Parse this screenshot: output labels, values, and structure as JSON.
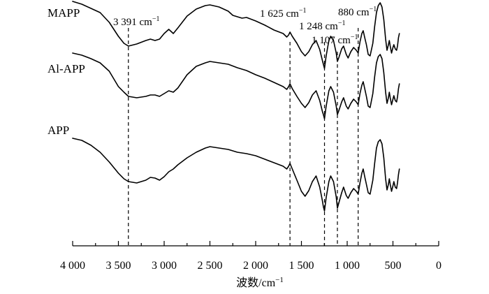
{
  "chart_data": {
    "type": "line",
    "xlabel": "波数/cm",
    "xlabel_sup": "−1",
    "xlim": [
      4000,
      0
    ],
    "x_reversed": true,
    "x_ticks": [
      {
        "value": 4000,
        "label": "4 000"
      },
      {
        "value": 3500,
        "label": "3 500"
      },
      {
        "value": 3000,
        "label": "3 000"
      },
      {
        "value": 2500,
        "label": "2 500"
      },
      {
        "value": 2000,
        "label": "2 000"
      },
      {
        "value": 1500,
        "label": "1 500"
      },
      {
        "value": 1000,
        "label": "1 000"
      },
      {
        "value": 500,
        "label": "500"
      },
      {
        "value": 0,
        "label": "0"
      }
    ],
    "annotations": [
      {
        "x": 3391,
        "text": "3 391 cm",
        "sup": "−1"
      },
      {
        "x": 1625,
        "text": "1 625 cm",
        "sup": "−1"
      },
      {
        "x": 1248,
        "text": "1 248 cm",
        "sup": "−1"
      },
      {
        "x": 1107,
        "text": "1 107 cm",
        "sup": "−1"
      },
      {
        "x": 880,
        "text": "880 cm",
        "sup": "−1"
      }
    ],
    "series": [
      {
        "name": "MAPP",
        "points": [
          [
            4000,
            14
          ],
          [
            3900,
            18
          ],
          [
            3800,
            24
          ],
          [
            3700,
            30
          ],
          [
            3600,
            44
          ],
          [
            3500,
            64
          ],
          [
            3440,
            74
          ],
          [
            3391,
            78
          ],
          [
            3300,
            75
          ],
          [
            3200,
            70
          ],
          [
            3150,
            68
          ],
          [
            3100,
            70
          ],
          [
            3050,
            68
          ],
          [
            3000,
            60
          ],
          [
            2950,
            54
          ],
          [
            2900,
            60
          ],
          [
            2850,
            52
          ],
          [
            2750,
            35
          ],
          [
            2650,
            25
          ],
          [
            2550,
            20
          ],
          [
            2500,
            19
          ],
          [
            2400,
            22
          ],
          [
            2300,
            28
          ],
          [
            2250,
            34
          ],
          [
            2150,
            38
          ],
          [
            2100,
            37
          ],
          [
            2000,
            42
          ],
          [
            1900,
            48
          ],
          [
            1800,
            55
          ],
          [
            1700,
            60
          ],
          [
            1660,
            65
          ],
          [
            1640,
            62
          ],
          [
            1625,
            58
          ],
          [
            1600,
            64
          ],
          [
            1550,
            74
          ],
          [
            1500,
            86
          ],
          [
            1460,
            92
          ],
          [
            1420,
            86
          ],
          [
            1380,
            76
          ],
          [
            1340,
            70
          ],
          [
            1300,
            83
          ],
          [
            1270,
            99
          ],
          [
            1260,
            104
          ],
          [
            1248,
            110
          ],
          [
            1230,
            92
          ],
          [
            1200,
            70
          ],
          [
            1180,
            64
          ],
          [
            1150,
            70
          ],
          [
            1120,
            88
          ],
          [
            1107,
            100
          ],
          [
            1090,
            94
          ],
          [
            1060,
            82
          ],
          [
            1040,
            78
          ],
          [
            1010,
            90
          ],
          [
            990,
            95
          ],
          [
            960,
            86
          ],
          [
            930,
            80
          ],
          [
            900,
            84
          ],
          [
            880,
            88
          ],
          [
            860,
            72
          ],
          [
            840,
            60
          ],
          [
            825,
            56
          ],
          [
            810,
            65
          ],
          [
            790,
            76
          ],
          [
            770,
            90
          ],
          [
            750,
            92
          ],
          [
            720,
            74
          ],
          [
            700,
            50
          ],
          [
            680,
            30
          ],
          [
            660,
            20
          ],
          [
            640,
            16
          ],
          [
            620,
            22
          ],
          [
            600,
            40
          ],
          [
            580,
            68
          ],
          [
            565,
            84
          ],
          [
            550,
            76
          ],
          [
            540,
            70
          ],
          [
            530,
            78
          ],
          [
            515,
            88
          ],
          [
            500,
            80
          ],
          [
            490,
            76
          ],
          [
            475,
            82
          ],
          [
            460,
            84
          ],
          [
            450,
            78
          ],
          [
            440,
            66
          ],
          [
            430,
            60
          ]
        ]
      },
      {
        "name": "Al-APP",
        "points": [
          [
            4000,
            14
          ],
          [
            3900,
            17
          ],
          [
            3800,
            22
          ],
          [
            3700,
            28
          ],
          [
            3600,
            40
          ],
          [
            3500,
            62
          ],
          [
            3440,
            70
          ],
          [
            3391,
            76
          ],
          [
            3300,
            78
          ],
          [
            3200,
            76
          ],
          [
            3150,
            74
          ],
          [
            3100,
            74
          ],
          [
            3050,
            76
          ],
          [
            3000,
            72
          ],
          [
            2950,
            68
          ],
          [
            2900,
            70
          ],
          [
            2850,
            64
          ],
          [
            2750,
            45
          ],
          [
            2650,
            33
          ],
          [
            2550,
            28
          ],
          [
            2500,
            26
          ],
          [
            2400,
            28
          ],
          [
            2300,
            30
          ],
          [
            2200,
            35
          ],
          [
            2100,
            39
          ],
          [
            2000,
            45
          ],
          [
            1900,
            50
          ],
          [
            1800,
            56
          ],
          [
            1700,
            62
          ],
          [
            1660,
            66
          ],
          [
            1640,
            62
          ],
          [
            1625,
            58
          ],
          [
            1600,
            65
          ],
          [
            1550,
            76
          ],
          [
            1500,
            86
          ],
          [
            1460,
            92
          ],
          [
            1420,
            85
          ],
          [
            1380,
            74
          ],
          [
            1340,
            68
          ],
          [
            1300,
            82
          ],
          [
            1270,
            98
          ],
          [
            1260,
            102
          ],
          [
            1248,
            108
          ],
          [
            1230,
            90
          ],
          [
            1200,
            68
          ],
          [
            1180,
            62
          ],
          [
            1150,
            70
          ],
          [
            1120,
            90
          ],
          [
            1107,
            102
          ],
          [
            1090,
            96
          ],
          [
            1060,
            84
          ],
          [
            1040,
            78
          ],
          [
            1010,
            90
          ],
          [
            990,
            94
          ],
          [
            960,
            86
          ],
          [
            930,
            80
          ],
          [
            900,
            84
          ],
          [
            880,
            88
          ],
          [
            860,
            72
          ],
          [
            840,
            60
          ],
          [
            825,
            55
          ],
          [
            810,
            64
          ],
          [
            790,
            76
          ],
          [
            770,
            90
          ],
          [
            750,
            92
          ],
          [
            720,
            72
          ],
          [
            700,
            48
          ],
          [
            680,
            28
          ],
          [
            660,
            19
          ],
          [
            640,
            16
          ],
          [
            620,
            22
          ],
          [
            600,
            42
          ],
          [
            580,
            70
          ],
          [
            565,
            86
          ],
          [
            550,
            78
          ],
          [
            540,
            70
          ],
          [
            530,
            78
          ],
          [
            515,
            88
          ],
          [
            500,
            80
          ],
          [
            490,
            75
          ],
          [
            475,
            82
          ],
          [
            460,
            84
          ],
          [
            450,
            77
          ],
          [
            440,
            65
          ],
          [
            430,
            58
          ]
        ]
      },
      {
        "name": "APP",
        "points": [
          [
            4000,
            10
          ],
          [
            3900,
            13
          ],
          [
            3800,
            20
          ],
          [
            3700,
            30
          ],
          [
            3600,
            44
          ],
          [
            3500,
            60
          ],
          [
            3440,
            68
          ],
          [
            3391,
            72
          ],
          [
            3300,
            74
          ],
          [
            3200,
            70
          ],
          [
            3150,
            66
          ],
          [
            3100,
            67
          ],
          [
            3050,
            70
          ],
          [
            3000,
            65
          ],
          [
            2950,
            58
          ],
          [
            2900,
            54
          ],
          [
            2850,
            48
          ],
          [
            2750,
            38
          ],
          [
            2650,
            30
          ],
          [
            2550,
            24
          ],
          [
            2500,
            22
          ],
          [
            2400,
            24
          ],
          [
            2300,
            26
          ],
          [
            2200,
            30
          ],
          [
            2100,
            32
          ],
          [
            2000,
            35
          ],
          [
            1900,
            40
          ],
          [
            1800,
            45
          ],
          [
            1700,
            50
          ],
          [
            1660,
            54
          ],
          [
            1640,
            50
          ],
          [
            1625,
            46
          ],
          [
            1600,
            54
          ],
          [
            1550,
            70
          ],
          [
            1500,
            86
          ],
          [
            1460,
            93
          ],
          [
            1420,
            85
          ],
          [
            1380,
            72
          ],
          [
            1340,
            64
          ],
          [
            1300,
            80
          ],
          [
            1270,
            100
          ],
          [
            1260,
            108
          ],
          [
            1248,
            114
          ],
          [
            1230,
            95
          ],
          [
            1200,
            72
          ],
          [
            1180,
            64
          ],
          [
            1150,
            72
          ],
          [
            1120,
            94
          ],
          [
            1107,
            110
          ],
          [
            1090,
            102
          ],
          [
            1060,
            88
          ],
          [
            1040,
            80
          ],
          [
            1010,
            92
          ],
          [
            990,
            96
          ],
          [
            960,
            88
          ],
          [
            930,
            82
          ],
          [
            900,
            86
          ],
          [
            880,
            90
          ],
          [
            860,
            74
          ],
          [
            840,
            60
          ],
          [
            825,
            54
          ],
          [
            810,
            64
          ],
          [
            790,
            76
          ],
          [
            770,
            88
          ],
          [
            750,
            90
          ],
          [
            720,
            70
          ],
          [
            700,
            46
          ],
          [
            680,
            24
          ],
          [
            660,
            15
          ],
          [
            640,
            12
          ],
          [
            620,
            18
          ],
          [
            600,
            38
          ],
          [
            580,
            68
          ],
          [
            565,
            84
          ],
          [
            550,
            76
          ],
          [
            540,
            68
          ],
          [
            530,
            76
          ],
          [
            515,
            86
          ],
          [
            500,
            78
          ],
          [
            490,
            72
          ],
          [
            475,
            80
          ],
          [
            460,
            82
          ],
          [
            450,
            74
          ],
          [
            440,
            62
          ],
          [
            430,
            54
          ]
        ]
      }
    ]
  }
}
